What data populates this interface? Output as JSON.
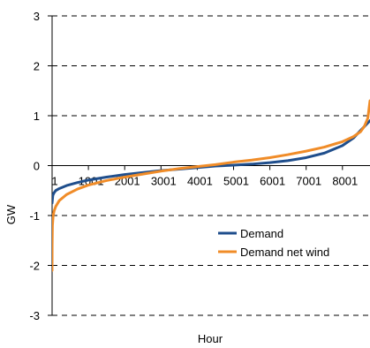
{
  "chart_data": {
    "type": "line",
    "title": "",
    "xlabel": "Hour",
    "ylabel": "GW",
    "ylim": [
      -3,
      3
    ],
    "xlim": [
      1,
      8760
    ],
    "y_ticks": [
      3,
      2,
      1,
      0,
      -1,
      -2,
      -3
    ],
    "x_ticks": [
      1,
      1001,
      2001,
      3001,
      4001,
      5001,
      6001,
      7001,
      8001
    ],
    "x_tick_labels": [
      "1",
      "1001",
      "2001",
      "3001",
      "4001",
      "5001",
      "6001",
      "7001",
      "8001"
    ],
    "y_tick_labels": [
      "3",
      "2",
      "1",
      "0",
      "-1",
      "-2",
      "-3"
    ],
    "grid": "horizontal dashed",
    "legend_position": "lower-right inside",
    "series": [
      {
        "name": "Demand",
        "color": "#1f4e8c",
        "x": [
          1,
          20,
          50,
          100,
          200,
          400,
          700,
          1000,
          1500,
          2000,
          2500,
          3000,
          3500,
          4000,
          4500,
          5000,
          5500,
          6000,
          6500,
          7000,
          7500,
          8000,
          8300,
          8600,
          8760
        ],
        "y": [
          -0.75,
          -0.6,
          -0.55,
          -0.5,
          -0.46,
          -0.4,
          -0.34,
          -0.29,
          -0.23,
          -0.18,
          -0.14,
          -0.1,
          -0.07,
          -0.04,
          -0.01,
          0.01,
          0.03,
          0.06,
          0.1,
          0.16,
          0.25,
          0.4,
          0.55,
          0.78,
          0.9
        ]
      },
      {
        "name": "Demand net wind",
        "color": "#f08c28",
        "x": [
          1,
          3,
          10,
          30,
          60,
          100,
          200,
          400,
          700,
          1000,
          1500,
          2000,
          2500,
          3000,
          3500,
          4000,
          4500,
          5000,
          5500,
          6000,
          6500,
          7000,
          7500,
          8000,
          8300,
          8500,
          8600,
          8700,
          8760
        ],
        "y": [
          -2.1,
          -1.6,
          -1.2,
          -1.0,
          -0.9,
          -0.82,
          -0.7,
          -0.58,
          -0.47,
          -0.39,
          -0.3,
          -0.23,
          -0.17,
          -0.11,
          -0.06,
          -0.02,
          0.02,
          0.07,
          0.11,
          0.16,
          0.22,
          0.29,
          0.37,
          0.48,
          0.58,
          0.68,
          0.78,
          0.95,
          1.3
        ]
      }
    ]
  }
}
